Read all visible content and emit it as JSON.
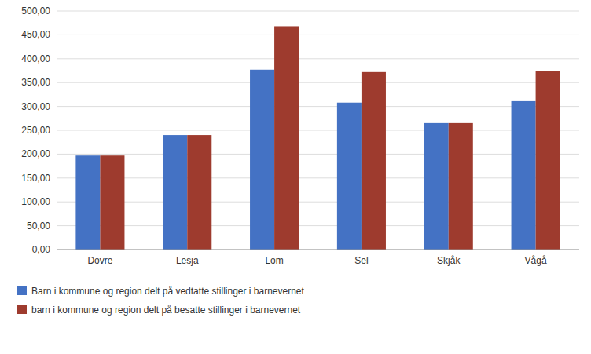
{
  "chart_data": {
    "type": "bar",
    "categories": [
      "Dovre",
      "Lesja",
      "Lom",
      "Sel",
      "Skjåk",
      "Vågå"
    ],
    "series": [
      {
        "name": "Barn i kommune og region delt på vedtatte stillinger i barnevernet",
        "color": "#4472C4",
        "values": [
          197,
          240,
          377,
          308,
          265,
          311
        ]
      },
      {
        "name": "barn i kommune og region delt på besatte stillinger i barnevernet",
        "color": "#9E3B2E",
        "values": [
          197,
          240,
          468,
          372,
          265,
          374
        ]
      }
    ],
    "ylim": [
      0,
      500
    ],
    "yticks": [
      {
        "value": 0,
        "label": "0,00"
      },
      {
        "value": 50,
        "label": "50,00"
      },
      {
        "value": 100,
        "label": "100,00"
      },
      {
        "value": 150,
        "label": "150,00"
      },
      {
        "value": 200,
        "label": "200,00"
      },
      {
        "value": 250,
        "label": "250,00"
      },
      {
        "value": 300,
        "label": "300,00"
      },
      {
        "value": 350,
        "label": "350,00"
      },
      {
        "value": 400,
        "label": "400,00"
      },
      {
        "value": 450,
        "label": "450,00"
      },
      {
        "value": 500,
        "label": "500,00"
      }
    ],
    "grid": true,
    "legend": "lower left"
  }
}
